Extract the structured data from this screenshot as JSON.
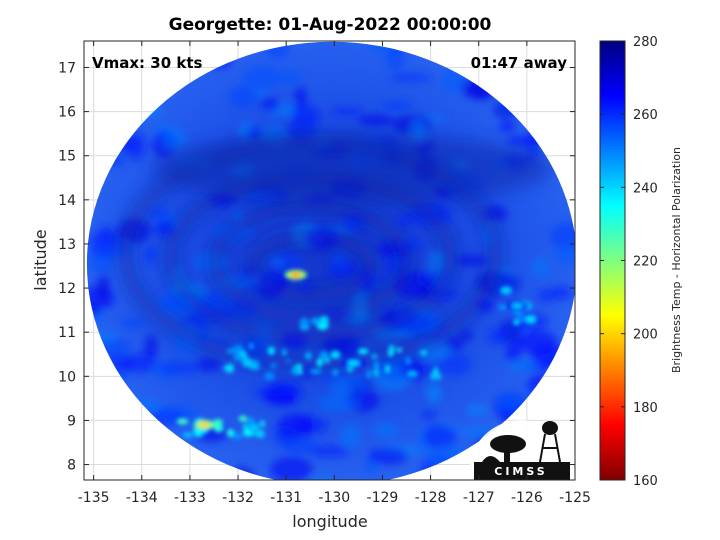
{
  "chart_data": {
    "type": "heatmap",
    "title": "Georgette: 01-Aug-2022 00:00:00",
    "xlabel": "longitude",
    "ylabel": "latitude",
    "xlim": [
      -135.2,
      -125
    ],
    "ylim": [
      7.65,
      17.6
    ],
    "xticks": [
      "-135",
      "-134",
      "-133",
      "-132",
      "-131",
      "-130",
      "-129",
      "-128",
      "-127",
      "-126",
      "-125"
    ],
    "yticks": [
      "8",
      "9",
      "10",
      "11",
      "12",
      "13",
      "14",
      "15",
      "16",
      "17"
    ],
    "grid": true,
    "annotations": {
      "vmax": "Vmax: 30 kts",
      "time_offset": "01:47 away"
    },
    "storm_center": {
      "lon": -130.7,
      "lat": 12.4
    },
    "swath_center": {
      "lon": -130.05,
      "lat": 12.55
    },
    "colorbar": {
      "label": "Brightness Temp - Horizontal Polarization",
      "range": [
        160,
        280
      ],
      "ticks": [
        "160",
        "180",
        "200",
        "220",
        "240",
        "260",
        "280"
      ],
      "colormap": "jet"
    },
    "features": [
      {
        "name": "eye-hotspot",
        "lon": -130.8,
        "lat": 12.3,
        "value": 195
      },
      {
        "name": "rainband-south",
        "lon": -129.6,
        "lat": 10.3,
        "value": 238
      },
      {
        "name": "rainband-southwest",
        "lon": -132.7,
        "lat": 8.9,
        "value": 200
      },
      {
        "name": "band-east",
        "lon": -126.2,
        "lat": 11.6,
        "value": 242
      }
    ]
  },
  "logo": {
    "text": "CIMSS"
  },
  "colors": {
    "background": "#ffffff",
    "axis": "#262626",
    "grid": "#dcdcdc"
  }
}
